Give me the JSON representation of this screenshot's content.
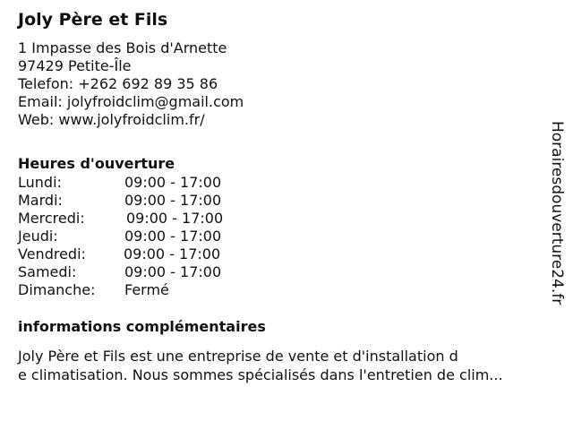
{
  "business": {
    "name": "Joly Père et Fils",
    "address_line1": "1 Impasse des Bois d'Arnette",
    "address_line2": "97429 Petite-Île",
    "phone": "Telefon: +262 692 89 35 86",
    "email": "Email: jolyfroidclim@gmail.com",
    "web": "Web: www.jolyfroidclim.fr/"
  },
  "hours": {
    "title": "Heures d'ouverture",
    "rows": [
      {
        "day": "Lundi:",
        "time": "09:00 - 17:00"
      },
      {
        "day": "Mardi:",
        "time": "09:00 - 17:00"
      },
      {
        "day": "Mercredi:",
        "time": "09:00 - 17:00"
      },
      {
        "day": "Jeudi:",
        "time": "09:00 - 17:00"
      },
      {
        "day": "Vendredi:",
        "time": "09:00 - 17:00"
      },
      {
        "day": "Samedi:",
        "time": "09:00 - 17:00"
      },
      {
        "day": "Dimanche:",
        "time": "Fermé"
      }
    ]
  },
  "info": {
    "title": "informations complémentaires",
    "line1": "Joly Père et Fils est une entreprise de vente et d'installation d",
    "line2": "e climatisation. Nous sommes spécialisés dans l'entretien de clim..."
  },
  "watermark": "Horairesdouverture24.fr"
}
